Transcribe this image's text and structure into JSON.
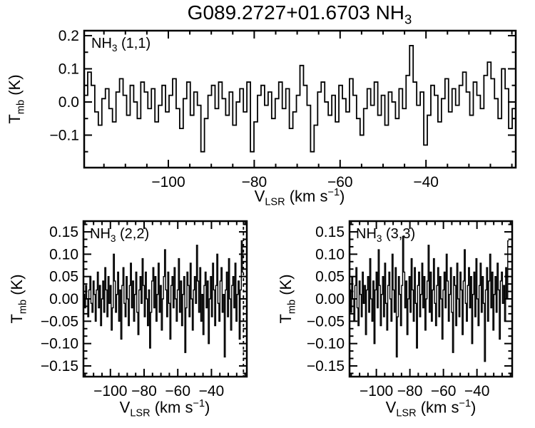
{
  "title": {
    "text": "G089.2727+01.6703 NH",
    "sub": "3"
  },
  "colors": {
    "background": "#ffffff",
    "axis": "#000000",
    "data": "#000000"
  },
  "x_axis_label": {
    "prefix": "V",
    "sub": "LSR",
    "mid": " (km s",
    "sup": "−1",
    "suffix": ")"
  },
  "y_axis_label": {
    "prefix": "T",
    "sub": "mb",
    "suffix": " (K)"
  },
  "chart_data": [
    {
      "id": "nh3-11",
      "type": "line",
      "line_style": "histogram-step",
      "annotation": {
        "prefix": "NH",
        "sub": "3",
        "rest": " (1,1)"
      },
      "xlabel": "VLSR (km s-1)",
      "ylabel": "Tmb (K)",
      "xlim": [
        -119.6,
        -19.1
      ],
      "ylim": [
        -0.198,
        0.215
      ],
      "xticks": [
        -100,
        -80,
        -60,
        -40
      ],
      "xtick_labels": [
        "−100",
        "−80",
        "−60",
        "−40"
      ],
      "x_minor_step": 5,
      "yticks": [
        -0.1,
        0.0,
        0.1,
        0.2
      ],
      "ytick_labels": [
        "−0.1",
        "0.0",
        "0.1",
        "0.2"
      ],
      "y_minor_step": 0.05,
      "data_x_start": -119.6,
      "data_x_end": -19.1,
      "marker_velocity": null,
      "values": [
        0.02,
        0.09,
        0.05,
        -0.03,
        -0.07,
        0.01,
        0.04,
        -0.02,
        -0.06,
        0.03,
        0.07,
        0.02,
        -0.04,
        0.05,
        0.0,
        -0.05,
        0.06,
        0.03,
        -0.02,
        0.04,
        -0.06,
        -0.01,
        0.05,
        -0.03,
        0.02,
        0.07,
        -0.02,
        -0.08,
        0.01,
        0.06,
        -0.04,
        0.03,
        -0.01,
        -0.15,
        -0.05,
        0.02,
        0.05,
        -0.02,
        0.06,
        0.01,
        -0.04,
        0.03,
        -0.07,
        0.0,
        0.04,
        -0.03,
        0.06,
        -0.15,
        -0.06,
        0.02,
        0.05,
        -0.01,
        0.03,
        -0.05,
        0.01,
        0.06,
        -0.02,
        0.04,
        -0.08,
        -0.03,
        0.02,
        0.11,
        0.05,
        -0.01,
        -0.15,
        -0.07,
        0.03,
        0.06,
        0.0,
        -0.04,
        0.02,
        -0.06,
        0.05,
        0.01,
        -0.03,
        0.07,
        0.02,
        -0.05,
        -0.1,
        -0.02,
        0.04,
        -0.01,
        0.06,
        -0.04,
        0.02,
        -0.07,
        0.03,
        0.0,
        -0.05,
        0.04,
        -0.02,
        0.08,
        0.17,
        0.06,
        -0.01,
        0.03,
        -0.13,
        -0.04,
        0.05,
        0.02,
        -0.06,
        0.01,
        0.07,
        -0.03,
        0.04,
        -0.01,
        0.05,
        0.09,
        0.03,
        -0.04,
        0.06,
        0.02,
        -0.02,
        0.08,
        0.12,
        0.07,
        0.01,
        -0.05,
        0.1,
        0.04,
        -0.08,
        -0.02
      ]
    },
    {
      "id": "nh3-22",
      "type": "line",
      "line_style": "histogram-step",
      "annotation": {
        "prefix": "NH",
        "sub": "3",
        "rest": " (2,2)"
      },
      "xlabel": "VLSR (km s-1)",
      "ylabel": "Tmb (K)",
      "xlim": [
        -116,
        -19
      ],
      "ylim": [
        -0.174,
        0.174
      ],
      "xticks": [
        -100,
        -80,
        -60,
        -40
      ],
      "xtick_labels": [
        "−100",
        "−80",
        "−60",
        "−40"
      ],
      "x_minor_step": 5,
      "yticks": [
        -0.15,
        -0.1,
        -0.05,
        0.0,
        0.05,
        0.1,
        0.15
      ],
      "ytick_labels": [
        "−0.15",
        "−0.10",
        "−0.05",
        "0.00",
        "0.05",
        "0.10",
        "0.15"
      ],
      "y_minor_step": 0.0166667,
      "data_x_start": -116,
      "data_x_end": -21,
      "marker_velocity": -21,
      "values": [
        0.01,
        -0.02,
        0.03,
        0.0,
        -0.04,
        0.02,
        0.05,
        -0.01,
        -0.03,
        0.04,
        0.01,
        -0.05,
        0.02,
        0.06,
        -0.02,
        0.03,
        -0.06,
        0.0,
        0.04,
        -0.03,
        0.07,
        0.02,
        -0.04,
        0.05,
        -0.01,
        0.03,
        -0.07,
        -0.02,
        0.1,
        0.04,
        -0.03,
        0.01,
        0.06,
        -0.05,
        0.02,
        -0.09,
        0.03,
        0.07,
        -0.01,
        -0.04,
        0.05,
        0.0,
        -0.06,
        0.03,
        0.08,
        -0.02,
        0.04,
        -0.05,
        0.01,
        0.06,
        -0.03,
        -0.08,
        0.02,
        0.05,
        -0.01,
        0.09,
        0.03,
        -0.04,
        0.06,
        0.0,
        -0.06,
        0.02,
        -0.11,
        -0.03,
        0.04,
        0.07,
        -0.02,
        0.05,
        -0.05,
        0.01,
        0.08,
        -0.03,
        0.03,
        -0.07,
        0.0,
        0.05,
        0.11,
        0.02,
        -0.04,
        0.06,
        -0.01,
        -0.09,
        0.03,
        0.05,
        -0.02,
        0.07,
        0.0,
        -0.05,
        0.02,
        0.09,
        -0.03,
        0.04,
        -0.06,
        0.01,
        0.05,
        -0.12,
        -0.02,
        0.06,
        0.03,
        -0.04,
        0.08,
        0.0,
        -0.07,
        0.02,
        0.05,
        -0.01,
        0.12,
        0.04,
        -0.03,
        0.07,
        -0.05,
        0.01,
        -0.08,
        0.03,
        0.06,
        -0.02,
        0.04,
        -0.1,
        0.0,
        0.05,
        -0.04,
        0.08,
        0.02,
        -0.06,
        0.03,
        0.1,
        -0.01,
        -0.05,
        0.04,
        0.07,
        -0.03,
        0.01,
        -0.13,
        0.02,
        0.06,
        -0.04,
        0.09,
        0.0,
        -0.07,
        0.03,
        0.05,
        -0.02,
        0.08,
        -0.05,
        0.01,
        0.04,
        -0.09,
        0.02,
        0.13,
        0.06
      ]
    },
    {
      "id": "nh3-33",
      "type": "line",
      "line_style": "histogram-step",
      "annotation": {
        "prefix": "NH",
        "sub": "3",
        "rest": " (3,3)"
      },
      "xlabel": "VLSR (km s-1)",
      "ylabel": "Tmb (K)",
      "xlim": [
        -116,
        -19
      ],
      "ylim": [
        -0.174,
        0.174
      ],
      "xticks": [
        -100,
        -80,
        -60,
        -40
      ],
      "xtick_labels": [
        "−100",
        "−80",
        "−60",
        "−40"
      ],
      "x_minor_step": 5,
      "yticks": [
        -0.15,
        -0.1,
        -0.05,
        0.0,
        0.05,
        0.1,
        0.15
      ],
      "ytick_labels": [
        "−0.15",
        "−0.10",
        "−0.05",
        "0.00",
        "0.05",
        "0.10",
        "0.15"
      ],
      "y_minor_step": 0.0166667,
      "data_x_start": -116,
      "data_x_end": -21,
      "marker_velocity": null,
      "values": [
        0.02,
        -0.03,
        0.05,
        0.0,
        -0.05,
        0.03,
        0.07,
        -0.02,
        -0.06,
        0.04,
        0.01,
        -0.04,
        0.06,
        -0.01,
        0.03,
        -0.08,
        0.02,
        0.05,
        -0.03,
        0.09,
        0.0,
        -0.05,
        0.04,
        -0.1,
        0.02,
        0.06,
        -0.02,
        0.11,
        0.03,
        -0.06,
        0.01,
        0.05,
        -0.04,
        0.08,
        -0.01,
        -0.07,
        0.03,
        0.06,
        0.0,
        -0.05,
        0.1,
        0.02,
        -0.03,
        0.07,
        -0.13,
        -0.04,
        0.05,
        0.01,
        -0.06,
        0.03,
        0.14,
        0.06,
        -0.02,
        0.04,
        -0.08,
        0.0,
        0.05,
        -0.03,
        0.09,
        0.02,
        -0.05,
        0.07,
        -0.01,
        -0.11,
        0.03,
        0.06,
        -0.04,
        0.01,
        0.08,
        -0.02,
        0.05,
        -0.07,
        0.0,
        0.04,
        0.12,
        -0.03,
        0.06,
        -0.05,
        0.02,
        0.09,
        -0.01,
        -0.06,
        0.03,
        0.07,
        -0.04,
        0.05,
        0.0,
        -0.09,
        0.02,
        0.06,
        -0.02,
        0.1,
        0.04,
        -0.05,
        0.01,
        0.07,
        -0.03,
        -0.12,
        0.05,
        0.03,
        -0.06,
        0.08,
        0.0,
        -0.04,
        0.06,
        0.02,
        -0.08,
        0.04,
        0.11,
        -0.01,
        -0.05,
        0.03,
        0.07,
        -0.02,
        0.05,
        -0.1,
        0.01,
        0.06,
        -0.04,
        0.09,
        0.0,
        -0.06,
        0.03,
        0.08,
        -0.03,
        0.05,
        -0.01,
        -0.14,
        0.02,
        0.07,
        -0.05,
        0.04,
        0.1,
        -0.02,
        0.06,
        -0.07,
        0.01,
        0.05,
        -0.03,
        0.08,
        0.02,
        -0.09,
        0.04,
        0.06,
        -0.01,
        0.03,
        -0.05,
        0.07,
        0.0,
        0.13
      ]
    }
  ]
}
